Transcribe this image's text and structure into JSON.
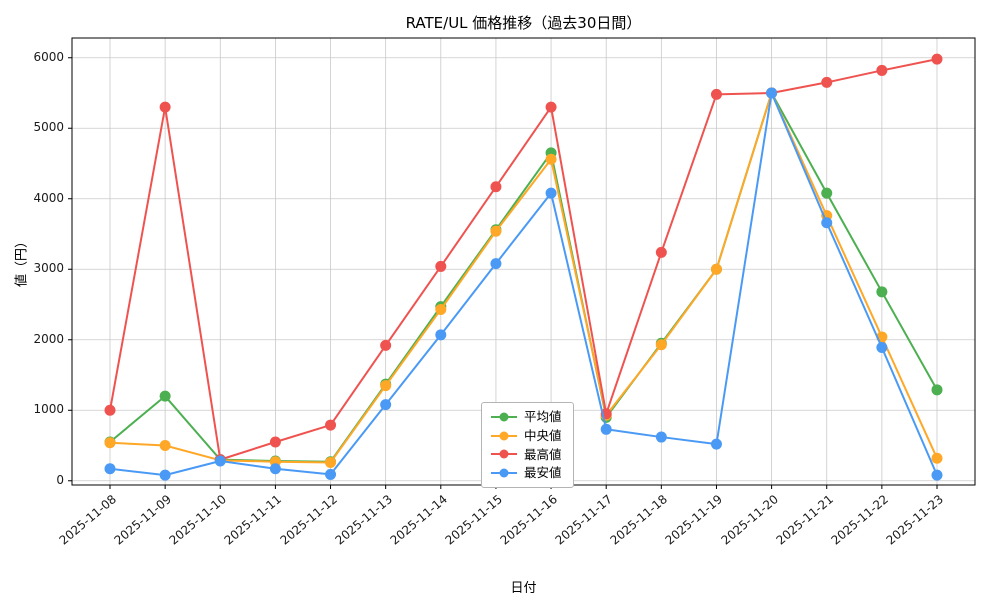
{
  "title": "RATE/UL 価格推移（過去30日間）",
  "xlabel": "日付",
  "ylabel": "値（円）",
  "chart_data": {
    "type": "line",
    "title": "RATE/UL 価格推移（過去30日間）",
    "xlabel": "日付",
    "ylabel": "値（円）",
    "grid": true,
    "legend_position": "lower-center-inside",
    "ylim": [
      -60,
      6280
    ],
    "yticks": [
      0,
      1000,
      2000,
      3000,
      4000,
      5000,
      6000
    ],
    "categories": [
      "2025-11-08",
      "2025-11-09",
      "2025-11-10",
      "2025-11-11",
      "2025-11-12",
      "2025-11-13",
      "2025-11-14",
      "2025-11-15",
      "2025-11-16",
      "2025-11-17",
      "2025-11-18",
      "2025-11-19",
      "2025-11-20",
      "2025-11-21",
      "2025-11-22",
      "2025-11-23"
    ],
    "series": [
      {
        "name": "平均値",
        "color": "#4caf50",
        "values": [
          550,
          1200,
          300,
          280,
          270,
          1370,
          2470,
          3560,
          4650,
          900,
          1950,
          3000,
          5500,
          4080,
          2680,
          1290
        ]
      },
      {
        "name": "中央値",
        "color": "#ffa726",
        "values": [
          540,
          500,
          290,
          270,
          260,
          1350,
          2430,
          3540,
          4560,
          930,
          1930,
          3000,
          5500,
          3760,
          2040,
          320
        ]
      },
      {
        "name": "最高値",
        "color": "#ef5350",
        "values": [
          1000,
          5300,
          300,
          550,
          790,
          1920,
          3040,
          4170,
          5300,
          950,
          3240,
          5480,
          5500,
          5650,
          5820,
          5980
        ]
      },
      {
        "name": "最安値",
        "color": "#4a9af5",
        "values": [
          170,
          80,
          280,
          170,
          90,
          1080,
          2070,
          3080,
          4080,
          730,
          620,
          520,
          5500,
          3660,
          1890,
          80
        ]
      }
    ]
  }
}
